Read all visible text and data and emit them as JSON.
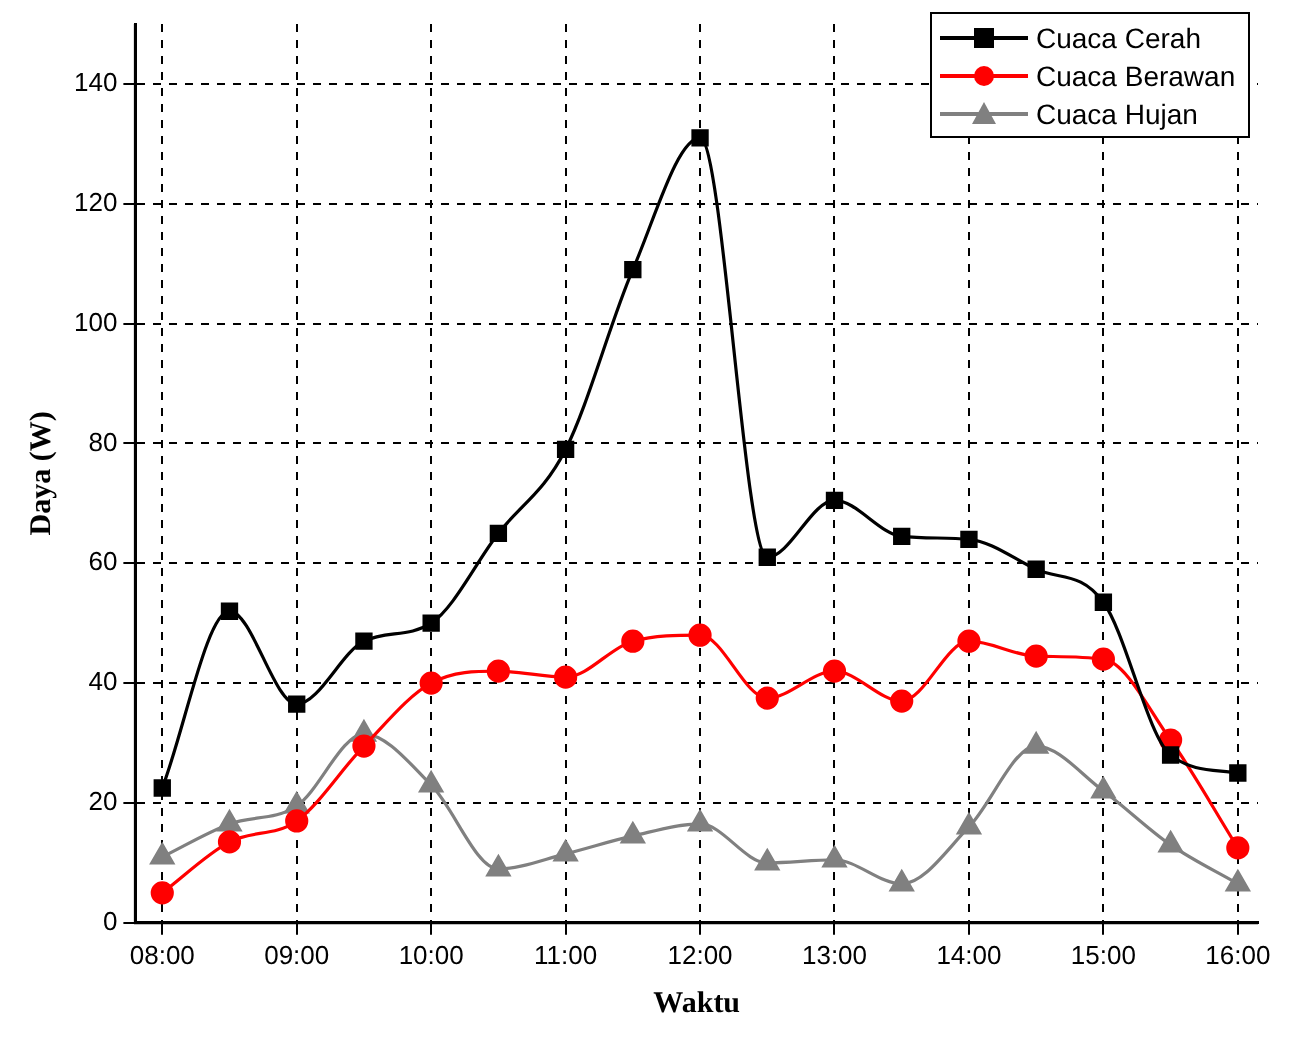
{
  "chart_data": {
    "type": "line",
    "xlabel": "Waktu",
    "ylabel": "Daya (W)",
    "x": [
      8,
      8.5,
      9,
      9.5,
      10,
      10.5,
      11,
      11.5,
      12,
      12.5,
      13,
      13.5,
      14,
      14.5,
      15,
      15.5,
      16
    ],
    "xlim": [
      7.8,
      16.15
    ],
    "xticks": [
      {
        "value": 8,
        "label": "08:00"
      },
      {
        "value": 9,
        "label": "09:00"
      },
      {
        "value": 10,
        "label": "10:00"
      },
      {
        "value": 11,
        "label": "11:00"
      },
      {
        "value": 12,
        "label": "12:00"
      },
      {
        "value": 13,
        "label": "13:00"
      },
      {
        "value": 14,
        "label": "14:00"
      },
      {
        "value": 15,
        "label": "15:00"
      },
      {
        "value": 16,
        "label": "16:00"
      }
    ],
    "ylim": [
      0,
      150
    ],
    "yticks": [
      0,
      20,
      40,
      60,
      80,
      100,
      120,
      140
    ],
    "grid": true,
    "legend": "top right",
    "line_style": "solid",
    "series": [
      {
        "name": "Cuaca Cerah",
        "color": "#000000",
        "marker": "square",
        "values": [
          22.5,
          52,
          36.5,
          47,
          50,
          65,
          79,
          109,
          131,
          61,
          70.5,
          64.5,
          64,
          59,
          53.5,
          28,
          25
        ]
      },
      {
        "name": "Cuaca Berawan",
        "color": "#ff0000",
        "marker": "circle",
        "values": [
          5,
          13.5,
          17,
          29.5,
          40,
          42,
          41,
          47,
          48,
          37.5,
          42,
          37,
          47,
          44.5,
          44,
          30.5,
          12.5
        ]
      },
      {
        "name": "Cuaca Hujan",
        "color": "#808080",
        "marker": "triangle",
        "values": [
          11,
          16.5,
          19.5,
          31.5,
          23,
          9,
          11.5,
          14.5,
          16.5,
          10,
          10.5,
          6.5,
          16,
          29.5,
          22,
          13,
          6.5
        ]
      }
    ]
  }
}
